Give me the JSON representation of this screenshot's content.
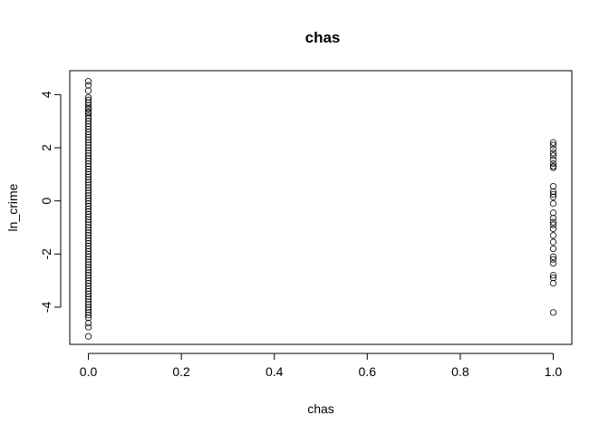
{
  "chart_data": {
    "type": "scatter",
    "title": "chas",
    "xlabel": "chas",
    "ylabel": "ln_crime",
    "xlim": [
      -0.04,
      1.04
    ],
    "ylim": [
      -5.4,
      4.9
    ],
    "x_ticks": [
      0.0,
      0.2,
      0.4,
      0.6,
      0.8,
      1.0
    ],
    "x_tick_labels": [
      "0.0",
      "0.2",
      "0.4",
      "0.6",
      "0.8",
      "1.0"
    ],
    "y_ticks": [
      -4,
      -2,
      0,
      2,
      4
    ],
    "y_tick_labels": [
      "-4",
      "-2",
      "0",
      "2",
      "4"
    ],
    "grid": false,
    "marker": "open-circle",
    "series": [
      {
        "x": 0,
        "y": [
          4.5,
          4.35,
          4.15,
          3.9,
          3.8,
          3.7,
          3.6,
          3.5,
          3.45,
          3.35,
          3.3,
          3.2,
          3.1,
          3.0,
          2.9,
          2.8,
          2.7,
          2.6,
          2.5,
          2.4,
          2.3,
          2.2,
          2.1,
          2.0,
          1.9,
          1.8,
          1.7,
          1.6,
          1.5,
          1.4,
          1.3,
          1.2,
          1.1,
          1.0,
          0.9,
          0.8,
          0.7,
          0.6,
          0.5,
          0.4,
          0.3,
          0.2,
          0.1,
          0.0,
          -0.1,
          -0.2,
          -0.3,
          -0.4,
          -0.5,
          -0.6,
          -0.7,
          -0.8,
          -0.9,
          -1.0,
          -1.1,
          -1.2,
          -1.3,
          -1.4,
          -1.5,
          -1.6,
          -1.7,
          -1.8,
          -1.9,
          -2.0,
          -2.1,
          -2.2,
          -2.3,
          -2.4,
          -2.5,
          -2.6,
          -2.7,
          -2.8,
          -2.9,
          -3.0,
          -3.1,
          -3.2,
          -3.3,
          -3.4,
          -3.5,
          -3.6,
          -3.7,
          -3.8,
          -3.9,
          -4.0,
          -4.1,
          -4.2,
          -4.3,
          -4.4,
          -4.6,
          -4.75,
          -5.1
        ]
      },
      {
        "x": 1,
        "y": [
          2.2,
          2.1,
          1.95,
          1.8,
          1.7,
          1.55,
          1.4,
          1.3,
          1.25,
          0.55,
          0.35,
          0.25,
          0.15,
          -0.1,
          -0.45,
          -0.65,
          -0.8,
          -0.9,
          -1.05,
          -1.3,
          -1.55,
          -1.8,
          -2.1,
          -2.2,
          -2.35,
          -2.8,
          -2.9,
          -3.1,
          -4.2
        ]
      }
    ]
  }
}
